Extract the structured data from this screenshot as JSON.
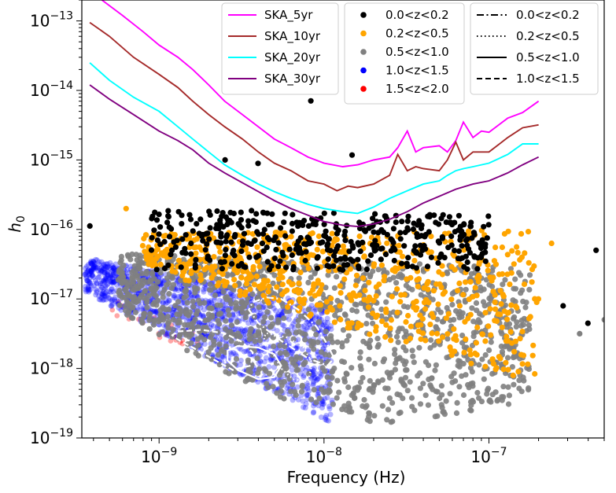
{
  "chart_data": {
    "type": "scatter",
    "title": "",
    "xlabel": "Frequency (Hz)",
    "ylabel": "h_0",
    "xscale": "log",
    "yscale": "log",
    "xlim": [
      3.4e-10,
      5e-07
    ],
    "ylim": [
      1e-19,
      2e-13
    ],
    "grid": false,
    "x_ticks": [
      {
        "value": 1e-09,
        "base": "10",
        "exp": "−9"
      },
      {
        "value": 1e-08,
        "base": "10",
        "exp": "−8"
      },
      {
        "value": 1e-07,
        "base": "10",
        "exp": "−7"
      }
    ],
    "y_ticks": [
      {
        "value": 1e-13,
        "base": "10",
        "exp": "−13"
      },
      {
        "value": 1e-14,
        "base": "10",
        "exp": "−14"
      },
      {
        "value": 1e-15,
        "base": "10",
        "exp": "−15"
      },
      {
        "value": 1e-16,
        "base": "10",
        "exp": "−16"
      },
      {
        "value": 1e-17,
        "base": "10",
        "exp": "−17"
      },
      {
        "value": 1e-18,
        "base": "10",
        "exp": "−18"
      },
      {
        "value": 1e-19,
        "base": "10",
        "exp": "−19"
      }
    ],
    "ylabel_main": "h",
    "ylabel_sub": "0",
    "curves": [
      {
        "name": "SKA_5yr",
        "color": "#ff00ff",
        "x": [
          4.5e-10,
          6e-10,
          8e-10,
          1e-09,
          1.3e-09,
          1.6e-09,
          2e-09,
          2.5e-09,
          3.2e-09,
          4e-09,
          5e-09,
          6.3e-09,
          8e-09,
          1e-08,
          1.3e-08,
          1.6e-08,
          2e-08,
          2.5e-08,
          2.8e-08,
          3.2e-08,
          3.6e-08,
          4e-08,
          5e-08,
          5.6e-08,
          6.3e-08,
          7e-08,
          8e-08,
          9e-08,
          1e-07,
          1.3e-07,
          1.6e-07,
          2e-07
        ],
        "y": [
          2e-13,
          1.2e-13,
          7e-14,
          4.5e-14,
          3e-14,
          2e-14,
          1.2e-14,
          7e-15,
          4.5e-15,
          3e-15,
          2e-15,
          1.5e-15,
          1.1e-15,
          9e-16,
          8e-16,
          8.5e-16,
          1e-15,
          1.1e-15,
          1.5e-15,
          2.6e-15,
          1.3e-15,
          1.5e-15,
          1.6e-15,
          1.3e-15,
          1.9e-15,
          3.5e-15,
          2.1e-15,
          2.6e-15,
          2.5e-15,
          4e-15,
          4.8e-15,
          7e-15
        ]
      },
      {
        "name": "SKA_10yr",
        "color": "#a52a2a",
        "x": [
          3.8e-10,
          5e-10,
          7e-10,
          1e-09,
          1.3e-09,
          1.6e-09,
          2e-09,
          2.5e-09,
          3.2e-09,
          4e-09,
          5e-09,
          6.3e-09,
          8e-09,
          1e-08,
          1.2e-08,
          1.4e-08,
          1.6e-08,
          2e-08,
          2.5e-08,
          2.8e-08,
          3.2e-08,
          3.6e-08,
          4e-08,
          5e-08,
          5.6e-08,
          6.3e-08,
          7e-08,
          8e-08,
          1e-07,
          1.3e-07,
          1.6e-07,
          2e-07
        ],
        "y": [
          9.5e-14,
          6e-14,
          3e-14,
          1.7e-14,
          1.1e-14,
          7e-15,
          4.5e-15,
          3e-15,
          2e-15,
          1.3e-15,
          9e-16,
          7e-16,
          5e-16,
          4.5e-16,
          3.6e-16,
          4.2e-16,
          4e-16,
          4.5e-16,
          6e-16,
          1.2e-15,
          7e-16,
          8e-16,
          7.5e-16,
          7e-16,
          1e-15,
          1.8e-15,
          1e-15,
          1.3e-15,
          1.3e-15,
          2.1e-15,
          2.9e-15,
          3.2e-15
        ]
      },
      {
        "name": "SKA_20yr",
        "color": "#00ffff",
        "x": [
          3.8e-10,
          5e-10,
          7e-10,
          1e-09,
          1.3e-09,
          1.6e-09,
          2e-09,
          2.5e-09,
          3.2e-09,
          4e-09,
          5e-09,
          6.3e-09,
          8e-09,
          1e-08,
          1.3e-08,
          1.6e-08,
          2e-08,
          2.5e-08,
          3.2e-08,
          4e-08,
          5e-08,
          5.6e-08,
          6.3e-08,
          7e-08,
          8e-08,
          1e-07,
          1.3e-07,
          1.6e-07,
          2e-07
        ],
        "y": [
          2.5e-14,
          1.4e-14,
          8e-15,
          5e-15,
          3e-15,
          2e-15,
          1.3e-15,
          8.5e-16,
          6e-16,
          4.5e-16,
          3.5e-16,
          2.8e-16,
          2.3e-16,
          2e-16,
          1.8e-16,
          1.7e-16,
          2.1e-16,
          2.8e-16,
          3.6e-16,
          4.5e-16,
          5e-16,
          6e-16,
          7e-16,
          7.5e-16,
          8e-16,
          9e-16,
          1.2e-15,
          1.7e-15,
          1.7e-15
        ]
      },
      {
        "name": "SKA_30yr",
        "color": "#800080",
        "x": [
          3.8e-10,
          5e-10,
          7e-10,
          1e-09,
          1.3e-09,
          1.6e-09,
          2e-09,
          2.5e-09,
          3.2e-09,
          4e-09,
          5e-09,
          6.3e-09,
          8e-09,
          1e-08,
          1.3e-08,
          1.6e-08,
          2e-08,
          2.5e-08,
          3.2e-08,
          4e-08,
          5e-08,
          6.3e-08,
          8e-08,
          1e-07,
          1.3e-07,
          1.6e-07,
          2e-07
        ],
        "y": [
          1.2e-14,
          7.5e-15,
          4.5e-15,
          2.6e-15,
          1.9e-15,
          1.4e-15,
          9e-16,
          6.5e-16,
          4.7e-16,
          3.5e-16,
          2.6e-16,
          2e-16,
          1.6e-16,
          1.3e-16,
          1.15e-16,
          1.1e-16,
          1.2e-16,
          1.4e-16,
          1.8e-16,
          2.4e-16,
          3e-16,
          3.8e-16,
          4.5e-16,
          5e-16,
          6.5e-16,
          8.5e-16,
          1.1e-15
        ]
      }
    ],
    "scatter_series": [
      {
        "name": "0.0<z<0.2",
        "color": "#000000"
      },
      {
        "name": "0.2<z<0.5",
        "color": "#ffa500"
      },
      {
        "name": "0.5<z<1.0",
        "color": "#808080"
      },
      {
        "name": "1.0<z<1.5",
        "color": "#0000ff"
      },
      {
        "name": "1.5<z<2.0",
        "color": "#ff0000"
      }
    ],
    "contour_series": [
      {
        "name": "0.0<z<0.2",
        "dash": "dashdot",
        "x": [
          5.5e-09,
          7e-09,
          9e-09,
          1.05e-08,
          1.15e-08,
          1.05e-08,
          8e-09,
          5.5e-09,
          4e-09,
          3.5e-09,
          3.7e-09,
          4.5e-09,
          5.5e-09
        ],
        "y": [
          1e-17,
          7e-18,
          4e-18,
          2.2e-18,
          1.4e-18,
          1.1e-18,
          1.4e-18,
          2.5e-18,
          4.5e-18,
          7e-18,
          9e-18,
          1.05e-17,
          1e-17
        ]
      },
      {
        "name": "0.2<z<0.5",
        "dash": "dotted",
        "x": [
          4.5e-09,
          6e-09,
          7.5e-09,
          8.5e-09,
          8e-09,
          6.5e-09,
          5.5e-09,
          5e-09,
          4.5e-09,
          4.3e-09,
          4.5e-09
        ],
        "y": [
          3.2e-18,
          2.8e-18,
          2e-18,
          1.2e-18,
          6.5e-19,
          7e-19,
          1e-18,
          1.5e-18,
          2.2e-18,
          2.8e-18,
          3.2e-18
        ]
      },
      {
        "name": "0.5<z<1.0",
        "dash": "solid",
        "x": [
          3e-09,
          4e-09,
          5e-09,
          5.5e-09,
          5e-09,
          4e-09,
          3e-09,
          2.6e-09,
          2.6e-09,
          3e-09
        ],
        "y": [
          2.1e-18,
          2e-18,
          1.6e-18,
          1.1e-18,
          7.5e-19,
          7e-19,
          9.5e-19,
          1.3e-18,
          1.8e-18,
          2.1e-18
        ]
      },
      {
        "name": "1.0<z<1.5",
        "dash": "dashed",
        "x": [
          1.3e-09,
          1.8e-09,
          2.5e-09,
          3.2e-09,
          3.7e-09,
          3.6e-09,
          2.8e-09,
          2.2e-09,
          1.6e-09,
          1.3e-09,
          1.2e-09,
          1.3e-09
        ],
        "y": [
          3.4e-18,
          3.6e-18,
          3.2e-18,
          2.4e-18,
          1.7e-18,
          1.1e-18,
          9.5e-19,
          1.3e-18,
          2e-18,
          2.6e-18,
          3e-18,
          3.4e-18
        ]
      }
    ],
    "legend_placement": "top-right"
  }
}
